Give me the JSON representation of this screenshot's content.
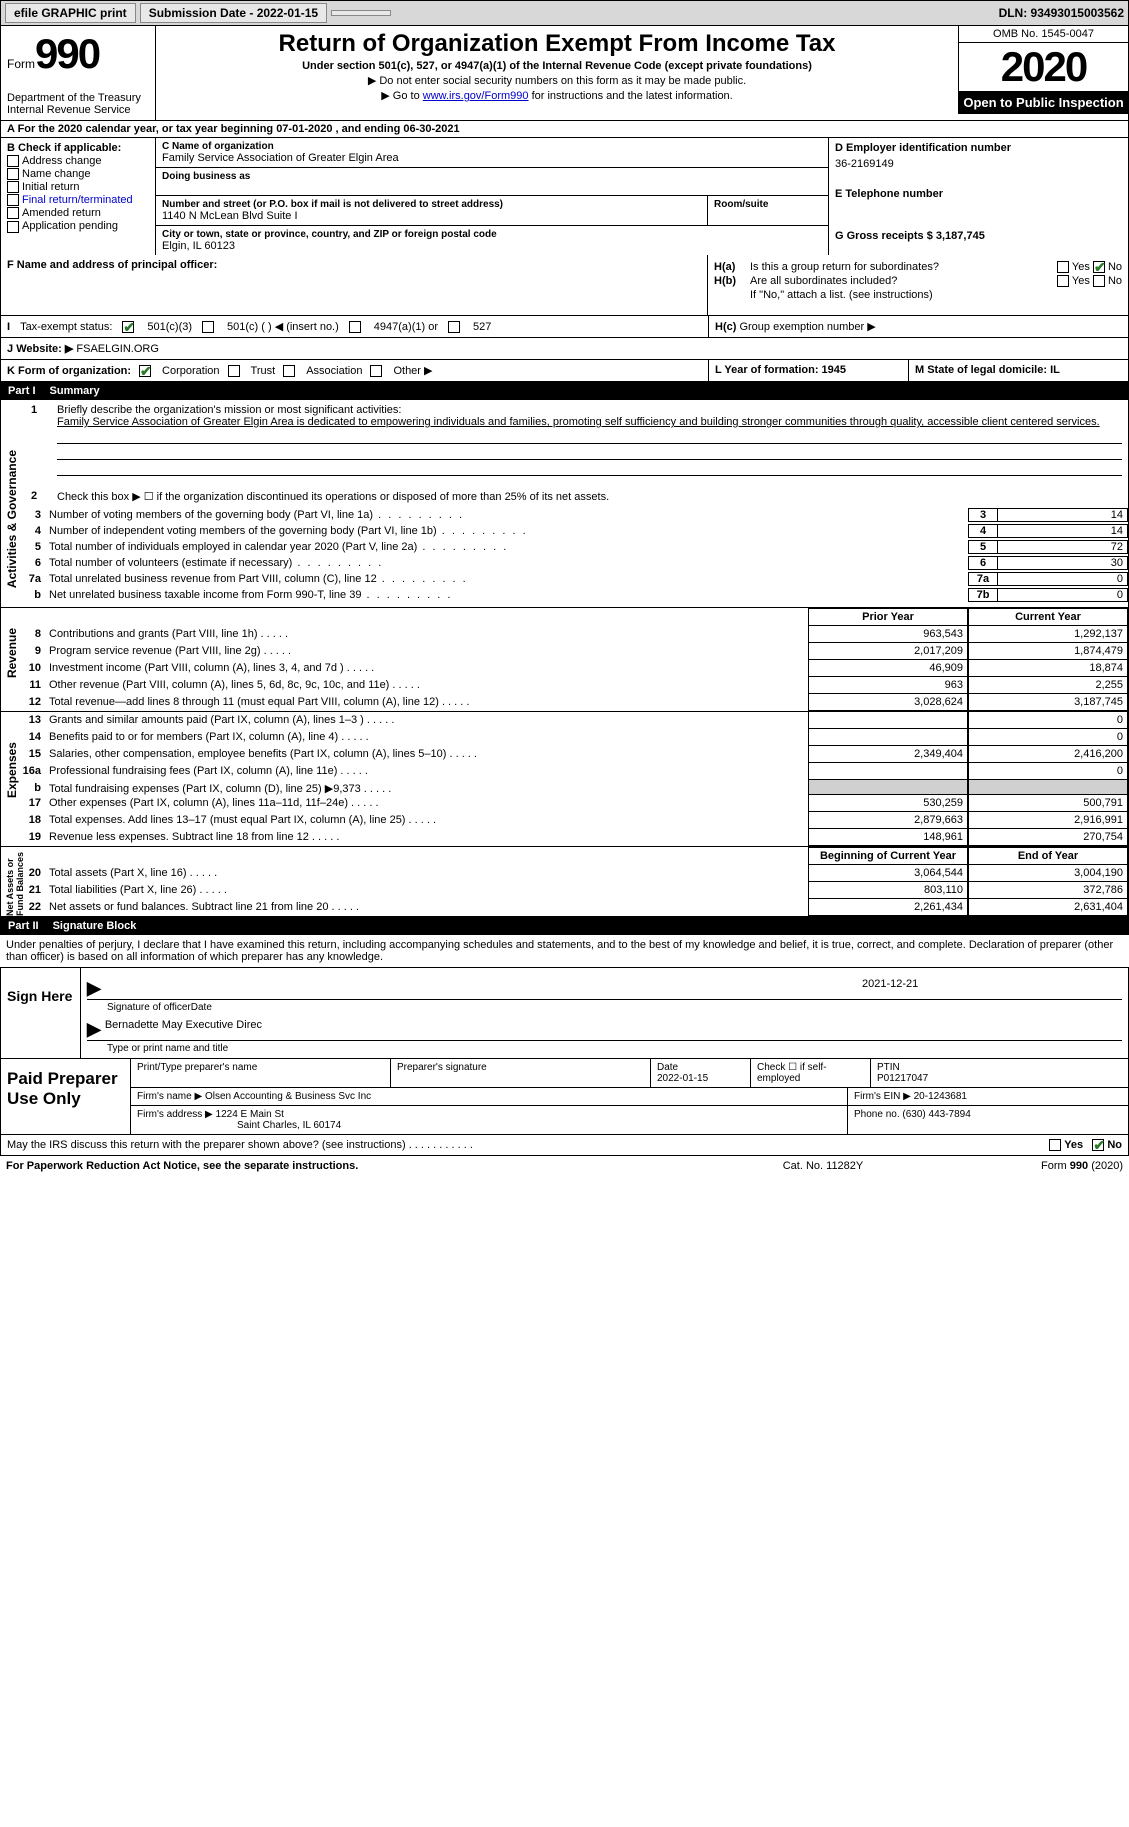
{
  "topbar": {
    "efile": "efile GRAPHIC print",
    "submission_label": "Submission Date - 2022-01-15",
    "doc_btn": "",
    "dln": "DLN: 93493015003562"
  },
  "header": {
    "form_word": "Form",
    "form_num": "990",
    "dept": "Department of the Treasury\nInternal Revenue Service",
    "title": "Return of Organization Exempt From Income Tax",
    "subtitle": "Under section 501(c), 527, or 4947(a)(1) of the Internal Revenue Code (except private foundations)",
    "note1": "▶ Do not enter social security numbers on this form as it may be made public.",
    "note2_pre": "▶ Go to ",
    "note2_link": "www.irs.gov/Form990",
    "note2_post": " for instructions and the latest information.",
    "omb": "OMB No. 1545-0047",
    "year": "2020",
    "open": "Open to Public Inspection"
  },
  "row_a": "A  For the 2020 calendar year, or tax year beginning 07-01-2020     , and ending 06-30-2021",
  "section_b": {
    "b_label": "B Check if applicable:",
    "checks": [
      "Address change",
      "Name change",
      "Initial return",
      "Final return/terminated",
      "Amended return",
      "Application pending"
    ],
    "c_label": "C Name of organization",
    "c_name": "Family Service Association of Greater Elgin Area",
    "dba_label": "Doing business as",
    "addr_label": "Number and street (or P.O. box if mail is not delivered to street address)",
    "addr": "1140 N McLean Blvd Suite I",
    "room_label": "Room/suite",
    "city_label": "City or town, state or province, country, and ZIP or foreign postal code",
    "city": "Elgin, IL  60123",
    "d_label": "D Employer identification number",
    "d_ein": "36-2169149",
    "e_label": "E Telephone number",
    "g_label": "G Gross receipts $ 3,187,745"
  },
  "principal": {
    "f_label": "F Name and address of principal officer:",
    "ha_label": "H(a)",
    "ha_text": "Is this a group return for subordinates?",
    "hb_label": "H(b)",
    "hb_text": "Are all subordinates included?",
    "hb_note": "If \"No,\" attach a list. (see instructions)",
    "hc_label": "H(c)",
    "hc_text": "Group exemption number ▶",
    "yes": "Yes",
    "no": "No"
  },
  "tax_status": {
    "i_label": "I",
    "i_text": "Tax-exempt status:",
    "opt1": "501(c)(3)",
    "opt2": "501(c) (  ) ◀ (insert no.)",
    "opt3": "4947(a)(1) or",
    "opt4": "527"
  },
  "website": {
    "j_label": "J",
    "j_text": "Website: ▶",
    "j_val": "FSAELGIN.ORG"
  },
  "k_row": {
    "k_label": "K Form of organization:",
    "opts": [
      "Corporation",
      "Trust",
      "Association",
      "Other ▶"
    ],
    "l_label": "L Year of formation: 1945",
    "m_label": "M State of legal domicile: IL"
  },
  "parts": {
    "p1": "Part I",
    "p1_title": "Summary",
    "p2": "Part II",
    "p2_title": "Signature Block"
  },
  "summary": {
    "line1_label": "1",
    "line1_text": "Briefly describe the organization's mission or most significant activities:",
    "mission": "Family Service Association of Greater Elgin Area is dedicated to empowering individuals and families, promoting self sufficiency and building stronger communities through quality, accessible client centered services.",
    "line2_label": "2",
    "line2_text": "Check this box ▶ ☐  if the organization discontinued its operations or disposed of more than 25% of its net assets.",
    "vert_ag": "Activities & Governance",
    "vert_rev": "Revenue",
    "vert_exp": "Expenses",
    "vert_net": "Net Assets or Fund Balances",
    "lines_ag": [
      {
        "n": "3",
        "d": "Number of voting members of the governing body (Part VI, line 1a)",
        "b": "3",
        "v": "14"
      },
      {
        "n": "4",
        "d": "Number of independent voting members of the governing body (Part VI, line 1b)",
        "b": "4",
        "v": "14"
      },
      {
        "n": "5",
        "d": "Total number of individuals employed in calendar year 2020 (Part V, line 2a)",
        "b": "5",
        "v": "72"
      },
      {
        "n": "6",
        "d": "Total number of volunteers (estimate if necessary)",
        "b": "6",
        "v": "30"
      },
      {
        "n": "7a",
        "d": "Total unrelated business revenue from Part VIII, column (C), line 12",
        "b": "7a",
        "v": "0"
      },
      {
        "n": "b",
        "d": "Net unrelated business taxable income from Form 990-T, line 39",
        "b": "7b",
        "v": "0"
      }
    ],
    "col_prior": "Prior Year",
    "col_current": "Current Year",
    "col_begin": "Beginning of Current Year",
    "col_end": "End of Year",
    "lines_rev": [
      {
        "n": "8",
        "d": "Contributions and grants (Part VIII, line 1h)",
        "p": "963,543",
        "c": "1,292,137"
      },
      {
        "n": "9",
        "d": "Program service revenue (Part VIII, line 2g)",
        "p": "2,017,209",
        "c": "1,874,479"
      },
      {
        "n": "10",
        "d": "Investment income (Part VIII, column (A), lines 3, 4, and 7d )",
        "p": "46,909",
        "c": "18,874"
      },
      {
        "n": "11",
        "d": "Other revenue (Part VIII, column (A), lines 5, 6d, 8c, 9c, 10c, and 11e)",
        "p": "963",
        "c": "2,255"
      },
      {
        "n": "12",
        "d": "Total revenue—add lines 8 through 11 (must equal Part VIII, column (A), line 12)",
        "p": "3,028,624",
        "c": "3,187,745"
      }
    ],
    "lines_exp": [
      {
        "n": "13",
        "d": "Grants and similar amounts paid (Part IX, column (A), lines 1–3 )",
        "p": "",
        "c": "0"
      },
      {
        "n": "14",
        "d": "Benefits paid to or for members (Part IX, column (A), line 4)",
        "p": "",
        "c": "0"
      },
      {
        "n": "15",
        "d": "Salaries, other compensation, employee benefits (Part IX, column (A), lines 5–10)",
        "p": "2,349,404",
        "c": "2,416,200"
      },
      {
        "n": "16a",
        "d": "Professional fundraising fees (Part IX, column (A), line 11e)",
        "p": "",
        "c": "0"
      },
      {
        "n": "b",
        "d": "Total fundraising expenses (Part IX, column (D), line 25) ▶9,373",
        "p": "shade",
        "c": "shade"
      },
      {
        "n": "17",
        "d": "Other expenses (Part IX, column (A), lines 11a–11d, 11f–24e)",
        "p": "530,259",
        "c": "500,791"
      },
      {
        "n": "18",
        "d": "Total expenses. Add lines 13–17 (must equal Part IX, column (A), line 25)",
        "p": "2,879,663",
        "c": "2,916,991"
      },
      {
        "n": "19",
        "d": "Revenue less expenses. Subtract line 18 from line 12",
        "p": "148,961",
        "c": "270,754"
      }
    ],
    "lines_net": [
      {
        "n": "20",
        "d": "Total assets (Part X, line 16)",
        "p": "3,064,544",
        "c": "3,004,190"
      },
      {
        "n": "21",
        "d": "Total liabilities (Part X, line 26)",
        "p": "803,110",
        "c": "372,786"
      },
      {
        "n": "22",
        "d": "Net assets or fund balances. Subtract line 21 from line 20",
        "p": "2,261,434",
        "c": "2,631,404"
      }
    ]
  },
  "sig": {
    "intro": "Under penalties of perjury, I declare that I have examined this return, including accompanying schedules and statements, and to the best of my knowledge and belief, it is true, correct, and complete. Declaration of preparer (other than officer) is based on all information of which preparer has any knowledge.",
    "sign_here": "Sign Here",
    "sig_officer": "Signature of officer",
    "date": "Date",
    "date_val": "2021-12-21",
    "name_title": "Bernadette May Executive Direc",
    "type_name": "Type or print name and title"
  },
  "prep": {
    "label": "Paid Preparer Use Only",
    "h1": "Print/Type preparer's name",
    "h2": "Preparer's signature",
    "h3": "Date",
    "h3v": "2022-01-15",
    "h4": "Check ☐ if self-employed",
    "h5": "PTIN",
    "h5v": "P01217047",
    "firm_name_lbl": "Firm's name     ▶",
    "firm_name": "Olsen Accounting & Business Svc Inc",
    "firm_ein_lbl": "Firm's EIN ▶",
    "firm_ein": "20-1243681",
    "firm_addr_lbl": "Firm's address ▶",
    "firm_addr": "1224 E Main St",
    "firm_city": "Saint Charles, IL  60174",
    "phone_lbl": "Phone no.",
    "phone": "(630) 443-7894"
  },
  "discuss": {
    "text": "May the IRS discuss this return with the preparer shown above? (see instructions)",
    "yes": "Yes",
    "no": "No"
  },
  "footer": {
    "left": "For Paperwork Reduction Act Notice, see the separate instructions.",
    "mid": "Cat. No. 11282Y",
    "right": "Form 990 (2020)"
  }
}
